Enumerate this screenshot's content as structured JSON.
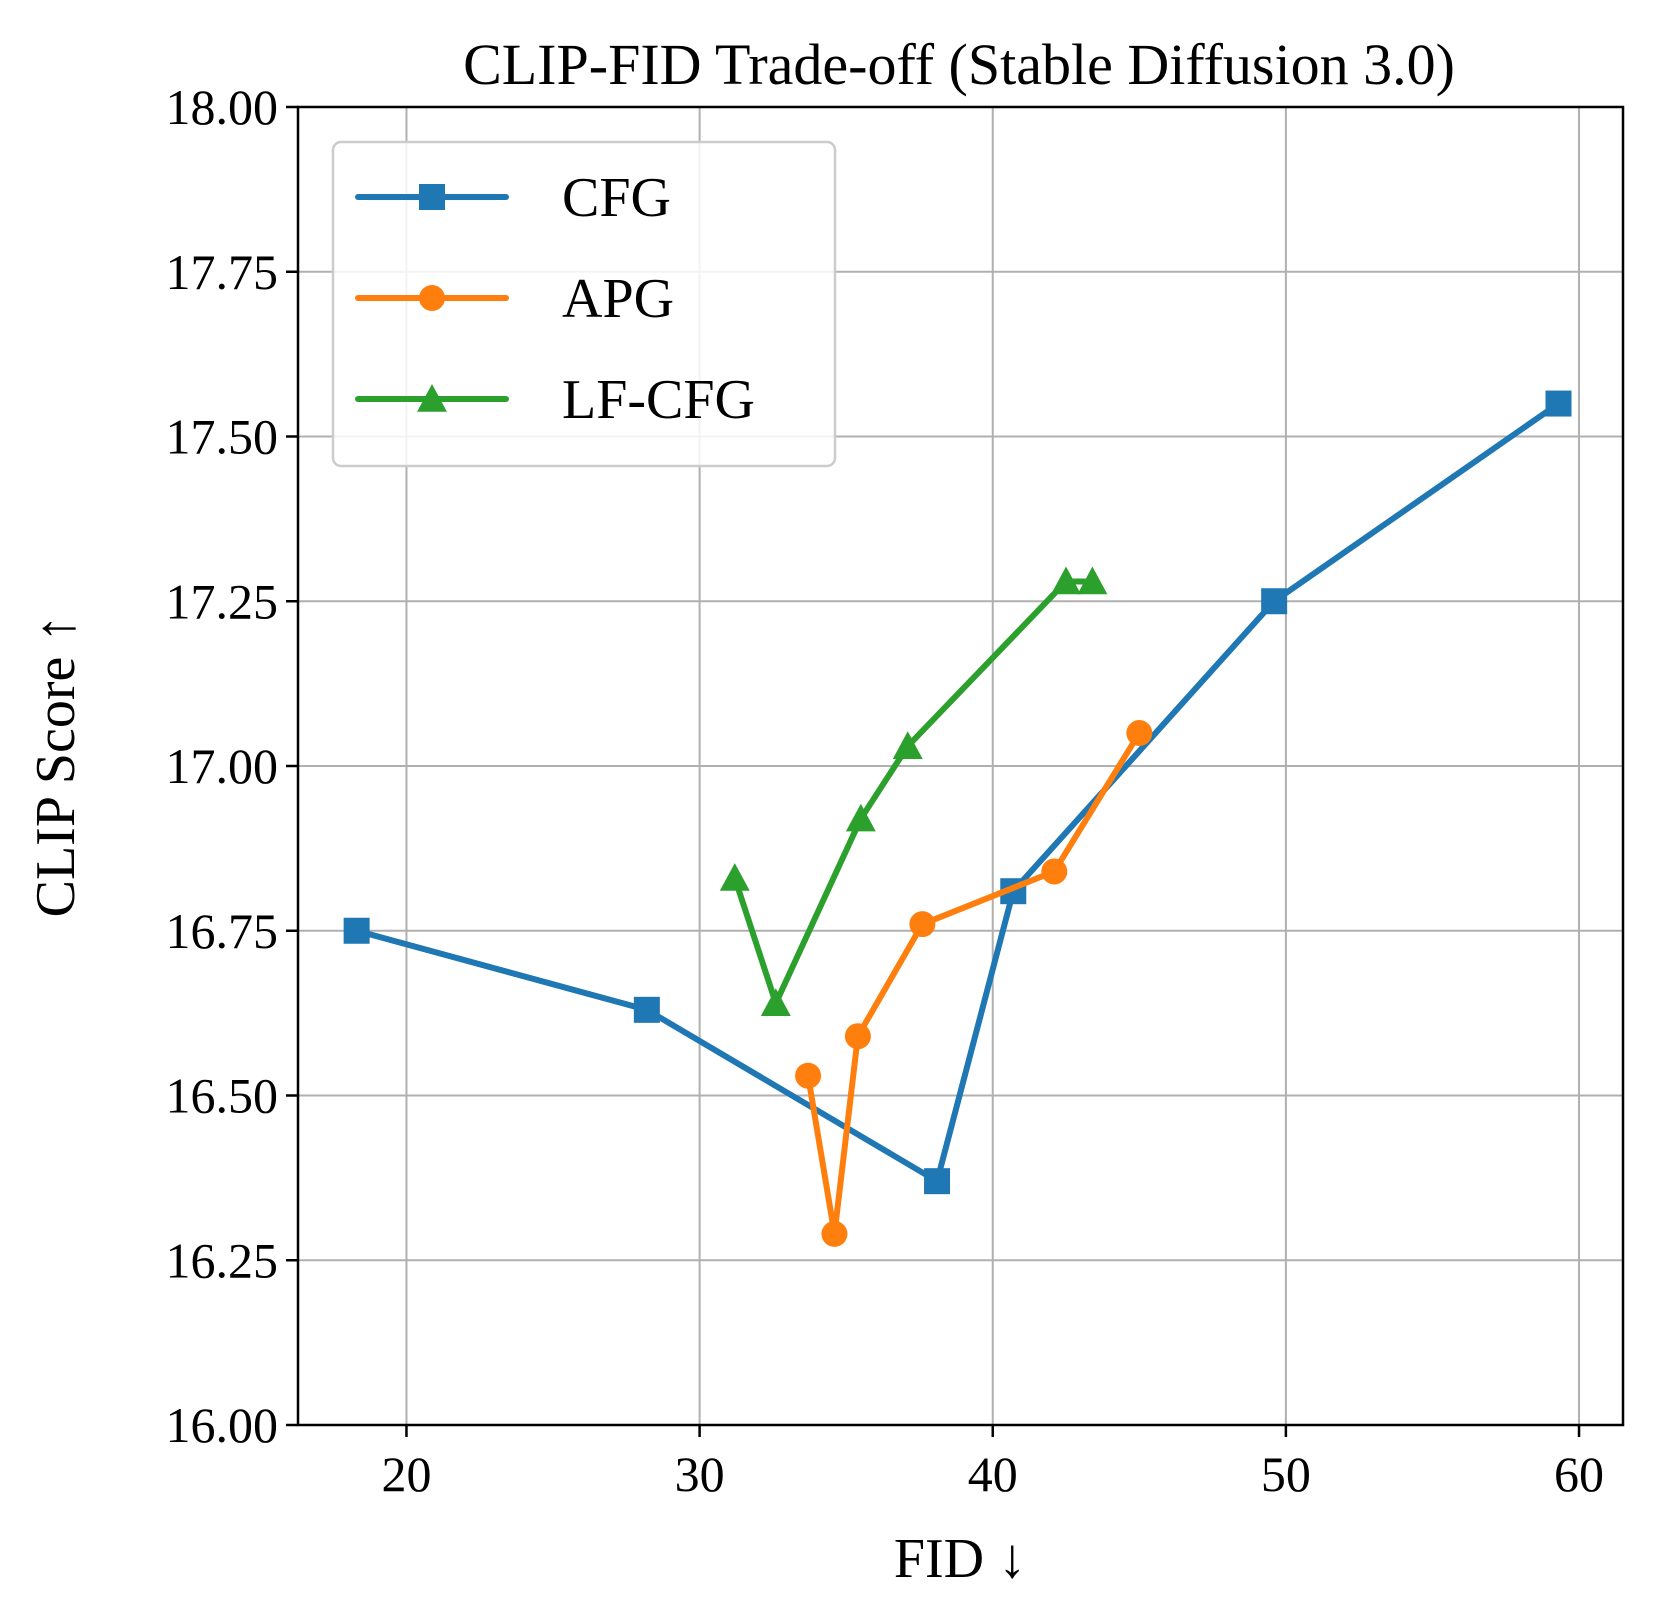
{
  "chart_data": {
    "type": "line",
    "title": "CLIP-FID Trade-off (Stable Diffusion 3.0)",
    "xlabel": "FID ↓",
    "ylabel": "CLIP Score ↑",
    "xlim": [
      16.3,
      61.5
    ],
    "ylim": [
      16.0,
      18.0
    ],
    "xticks": [
      20,
      30,
      40,
      50,
      60
    ],
    "xtick_labels": [
      "20",
      "30",
      "40",
      "50",
      "60"
    ],
    "yticks": [
      16.0,
      16.25,
      16.5,
      16.75,
      17.0,
      17.25,
      17.5,
      17.75,
      18.0
    ],
    "ytick_labels": [
      "16.00",
      "16.25",
      "16.50",
      "16.75",
      "17.00",
      "17.25",
      "17.50",
      "17.75",
      "18.00"
    ],
    "grid": true,
    "legend_position": "top-left",
    "series": [
      {
        "name": "CFG",
        "color": "#1f77b4",
        "marker": "square",
        "x": [
          18.3,
          28.2,
          38.1,
          40.7,
          49.6,
          59.3
        ],
        "y": [
          16.75,
          16.63,
          16.37,
          16.81,
          17.25,
          17.55
        ]
      },
      {
        "name": "APG",
        "color": "#ff7f0e",
        "marker": "circle",
        "x": [
          33.7,
          34.6,
          35.4,
          37.6,
          42.1,
          45.0
        ],
        "y": [
          16.53,
          16.29,
          16.59,
          16.76,
          16.84,
          17.05
        ]
      },
      {
        "name": "LF-CFG",
        "color": "#2ca02c",
        "marker": "triangle",
        "x": [
          31.2,
          32.6,
          35.5,
          37.1,
          42.5,
          43.4
        ],
        "y": [
          16.83,
          16.64,
          16.92,
          17.03,
          17.28,
          17.28
        ]
      }
    ]
  }
}
